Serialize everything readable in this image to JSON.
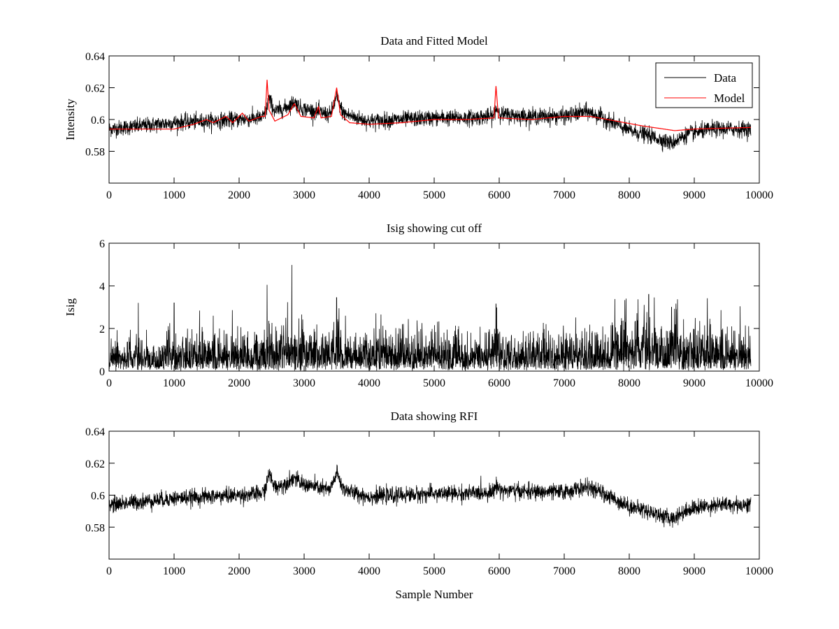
{
  "chart_data": [
    {
      "type": "line",
      "title": "Data and Fitted Model",
      "xlabel": "",
      "ylabel": "Intensity",
      "xlim": [
        0,
        10000
      ],
      "ylim": [
        0.56,
        0.64
      ],
      "xticks": [
        0,
        1000,
        2000,
        3000,
        4000,
        5000,
        6000,
        7000,
        8000,
        9000,
        10000
      ],
      "yticks": [
        0.58,
        0.6,
        0.62,
        0.64
      ],
      "ytick_labels": [
        "0.58",
        "0.6",
        "0.62",
        "0.64"
      ],
      "legend": {
        "position": "top-right",
        "entries": [
          "Data",
          "Model"
        ]
      },
      "series": [
        {
          "name": "Data",
          "color": "#000000",
          "style": "noisy",
          "noise": 0.0045,
          "base": [
            [
              0,
              0.594
            ],
            [
              500,
              0.596
            ],
            [
              1000,
              0.598
            ],
            [
              1500,
              0.599
            ],
            [
              2000,
              0.6
            ],
            [
              2350,
              0.601
            ],
            [
              2420,
              0.605
            ],
            [
              2450,
              0.614
            ],
            [
              2550,
              0.605
            ],
            [
              2700,
              0.607
            ],
            [
              2850,
              0.611
            ],
            [
              2950,
              0.607
            ],
            [
              3200,
              0.605
            ],
            [
              3400,
              0.603
            ],
            [
              3500,
              0.614
            ],
            [
              3600,
              0.604
            ],
            [
              3800,
              0.601
            ],
            [
              4000,
              0.599
            ],
            [
              4500,
              0.6
            ],
            [
              5000,
              0.601
            ],
            [
              5500,
              0.601
            ],
            [
              5900,
              0.602
            ],
            [
              5950,
              0.607
            ],
            [
              6050,
              0.603
            ],
            [
              6500,
              0.602
            ],
            [
              7000,
              0.602
            ],
            [
              7350,
              0.605
            ],
            [
              7600,
              0.601
            ],
            [
              8000,
              0.593
            ],
            [
              8300,
              0.59
            ],
            [
              8650,
              0.585
            ],
            [
              8900,
              0.591
            ],
            [
              9300,
              0.594
            ],
            [
              9870,
              0.594
            ]
          ]
        },
        {
          "name": "Model",
          "color": "#ff0000",
          "style": "smooth",
          "base": [
            [
              0,
              0.594
            ],
            [
              1000,
              0.594
            ],
            [
              1300,
              0.597
            ],
            [
              1500,
              0.6
            ],
            [
              1600,
              0.598
            ],
            [
              1800,
              0.602
            ],
            [
              1900,
              0.598
            ],
            [
              2050,
              0.604
            ],
            [
              2150,
              0.599
            ],
            [
              2350,
              0.602
            ],
            [
              2400,
              0.602
            ],
            [
              2430,
              0.625
            ],
            [
              2460,
              0.606
            ],
            [
              2550,
              0.599
            ],
            [
              2750,
              0.603
            ],
            [
              2850,
              0.61
            ],
            [
              2950,
              0.602
            ],
            [
              3150,
              0.601
            ],
            [
              3220,
              0.608
            ],
            [
              3260,
              0.601
            ],
            [
              3420,
              0.602
            ],
            [
              3500,
              0.62
            ],
            [
              3560,
              0.603
            ],
            [
              3700,
              0.598
            ],
            [
              4000,
              0.597
            ],
            [
              4500,
              0.598
            ],
            [
              5000,
              0.6
            ],
            [
              5500,
              0.6
            ],
            [
              5920,
              0.601
            ],
            [
              5950,
              0.621
            ],
            [
              5990,
              0.601
            ],
            [
              6500,
              0.6
            ],
            [
              7000,
              0.602
            ],
            [
              7400,
              0.602
            ],
            [
              7800,
              0.599
            ],
            [
              8200,
              0.596
            ],
            [
              8700,
              0.593
            ],
            [
              9000,
              0.594
            ],
            [
              9870,
              0.595
            ]
          ]
        }
      ]
    },
    {
      "type": "line",
      "title": "Isig showing cut off",
      "xlabel": "",
      "ylabel": "Isig",
      "xlim": [
        0,
        10000
      ],
      "ylim": [
        0,
        6
      ],
      "xticks": [
        0,
        1000,
        2000,
        3000,
        4000,
        5000,
        6000,
        7000,
        8000,
        9000,
        10000
      ],
      "yticks": [
        0,
        2,
        4,
        6
      ],
      "ytick_labels": [
        "0",
        "2",
        "4",
        "6"
      ],
      "series": [
        {
          "color": "#000000",
          "style": "isig",
          "base": [
            [
              0,
              0.8
            ],
            [
              2400,
              0.9
            ],
            [
              2450,
              1.4
            ],
            [
              2550,
              1.1
            ],
            [
              3000,
              1.1
            ],
            [
              3450,
              1.0
            ],
            [
              3500,
              1.6
            ],
            [
              3600,
              0.9
            ],
            [
              5900,
              0.9
            ],
            [
              5950,
              1.5
            ],
            [
              6050,
              0.9
            ],
            [
              7700,
              0.9
            ],
            [
              7900,
              1.4
            ],
            [
              8500,
              1.5
            ],
            [
              8900,
              1.1
            ],
            [
              9870,
              0.9
            ]
          ],
          "peaks": [
            [
              2430,
              4.05
            ],
            [
              3500,
              3.45
            ],
            [
              5950,
              3.15
            ],
            [
              8300,
              3.6
            ],
            [
              8650,
              3.0
            ],
            [
              7950,
              3.4
            ],
            [
              1000,
              3.2
            ],
            [
              450,
              3.2
            ]
          ]
        }
      ]
    },
    {
      "type": "line",
      "title": "Data showing RFI",
      "xlabel": "Sample Number",
      "ylabel": "",
      "xlim": [
        0,
        10000
      ],
      "ylim": [
        0.56,
        0.64
      ],
      "xticks": [
        0,
        1000,
        2000,
        3000,
        4000,
        5000,
        6000,
        7000,
        8000,
        9000,
        10000
      ],
      "yticks": [
        0.58,
        0.6,
        0.62,
        0.64
      ],
      "ytick_labels": [
        "0.58",
        "0.6",
        "0.62",
        "0.64"
      ],
      "series": [
        {
          "color": "#000000",
          "style": "noisy",
          "noise": 0.0045,
          "base": [
            [
              0,
              0.594
            ],
            [
              500,
              0.596
            ],
            [
              1000,
              0.598
            ],
            [
              1500,
              0.599
            ],
            [
              2000,
              0.6
            ],
            [
              2350,
              0.601
            ],
            [
              2420,
              0.605
            ],
            [
              2450,
              0.614
            ],
            [
              2550,
              0.605
            ],
            [
              2700,
              0.607
            ],
            [
              2850,
              0.611
            ],
            [
              2950,
              0.607
            ],
            [
              3200,
              0.605
            ],
            [
              3400,
              0.603
            ],
            [
              3500,
              0.614
            ],
            [
              3600,
              0.604
            ],
            [
              3800,
              0.601
            ],
            [
              4000,
              0.599
            ],
            [
              4500,
              0.6
            ],
            [
              5000,
              0.601
            ],
            [
              5500,
              0.601
            ],
            [
              5900,
              0.602
            ],
            [
              5950,
              0.606
            ],
            [
              6050,
              0.603
            ],
            [
              6500,
              0.602
            ],
            [
              7000,
              0.602
            ],
            [
              7350,
              0.605
            ],
            [
              7600,
              0.601
            ],
            [
              8000,
              0.593
            ],
            [
              8300,
              0.59
            ],
            [
              8650,
              0.585
            ],
            [
              8900,
              0.591
            ],
            [
              9300,
              0.594
            ],
            [
              9870,
              0.594
            ]
          ]
        }
      ]
    }
  ]
}
